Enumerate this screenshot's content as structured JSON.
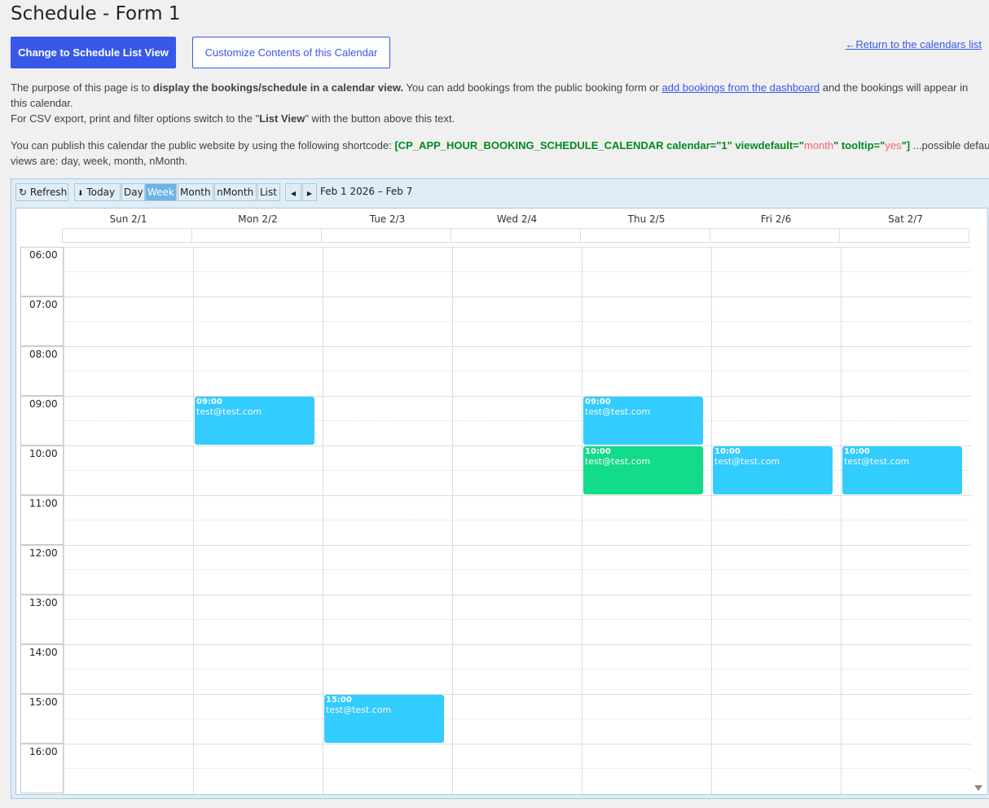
{
  "title": "Schedule - Form 1",
  "buttons": {
    "list_view": "Change to Schedule List View",
    "customize": "Customize Contents of this Calendar",
    "return": "←Return to the calendars list"
  },
  "intro": {
    "p1a": "The purpose of this page is to ",
    "p1b": "display the bookings/schedule in a calendar view.",
    "p1c": " You can add bookings from the public booking form or ",
    "p1link": "add bookings from the dashboard",
    "p1d": " and the bookings will appear in this calendar.",
    "p2a": "For CSV export, print and filter options switch to the \"",
    "p2b": "List View",
    "p2c": "\" with the button above this text.",
    "p3a": "You can publish this calendar the public website by using the following shortcode: ",
    "sc1": "[CP_APP_HOUR_BOOKING_SCHEDULE_CALENDAR calendar=\"1\" viewdefault=\"",
    "sc2": "month",
    "sc3": "\" tooltip=\"",
    "sc4": "yes",
    "sc5": "\"]",
    "p3b": " ...possible default views are: day, week, month, nMonth."
  },
  "toolbar": {
    "refresh": "Refresh",
    "today": "Today",
    "views": [
      "Day",
      "Week",
      "Month",
      "nMonth",
      "List"
    ],
    "active_view": "Week",
    "range": "Feb 1 2026 – Feb 7"
  },
  "days": [
    "Sun 2/1",
    "Mon 2/2",
    "Tue 2/3",
    "Wed 2/4",
    "Thu 2/5",
    "Fri 2/6",
    "Sat 2/7"
  ],
  "hours": [
    "06:00",
    "07:00",
    "08:00",
    "09:00",
    "10:00",
    "11:00",
    "12:00",
    "13:00",
    "14:00",
    "15:00",
    "16:00"
  ],
  "colors": {
    "blue": "#33ccff",
    "green": "#12dc8a",
    "accent": "#3858e9"
  },
  "events": [
    {
      "day": 1,
      "start": 9,
      "end": 10,
      "time": "09:00",
      "title": "test@test.com",
      "color": "#33ccff"
    },
    {
      "day": 4,
      "start": 9,
      "end": 10,
      "time": "09:00",
      "title": "test@test.com",
      "color": "#33ccff"
    },
    {
      "day": 4,
      "start": 10,
      "end": 11,
      "time": "10:00",
      "title": "test@test.com",
      "color": "#12dc8a"
    },
    {
      "day": 5,
      "start": 10,
      "end": 11,
      "time": "10:00",
      "title": "test@test.com",
      "color": "#33ccff"
    },
    {
      "day": 6,
      "start": 10,
      "end": 11,
      "time": "10:00",
      "title": "test@test.com",
      "color": "#33ccff"
    },
    {
      "day": 2,
      "start": 15,
      "end": 16,
      "time": "15:00",
      "title": "test@test.com",
      "color": "#33ccff"
    }
  ]
}
